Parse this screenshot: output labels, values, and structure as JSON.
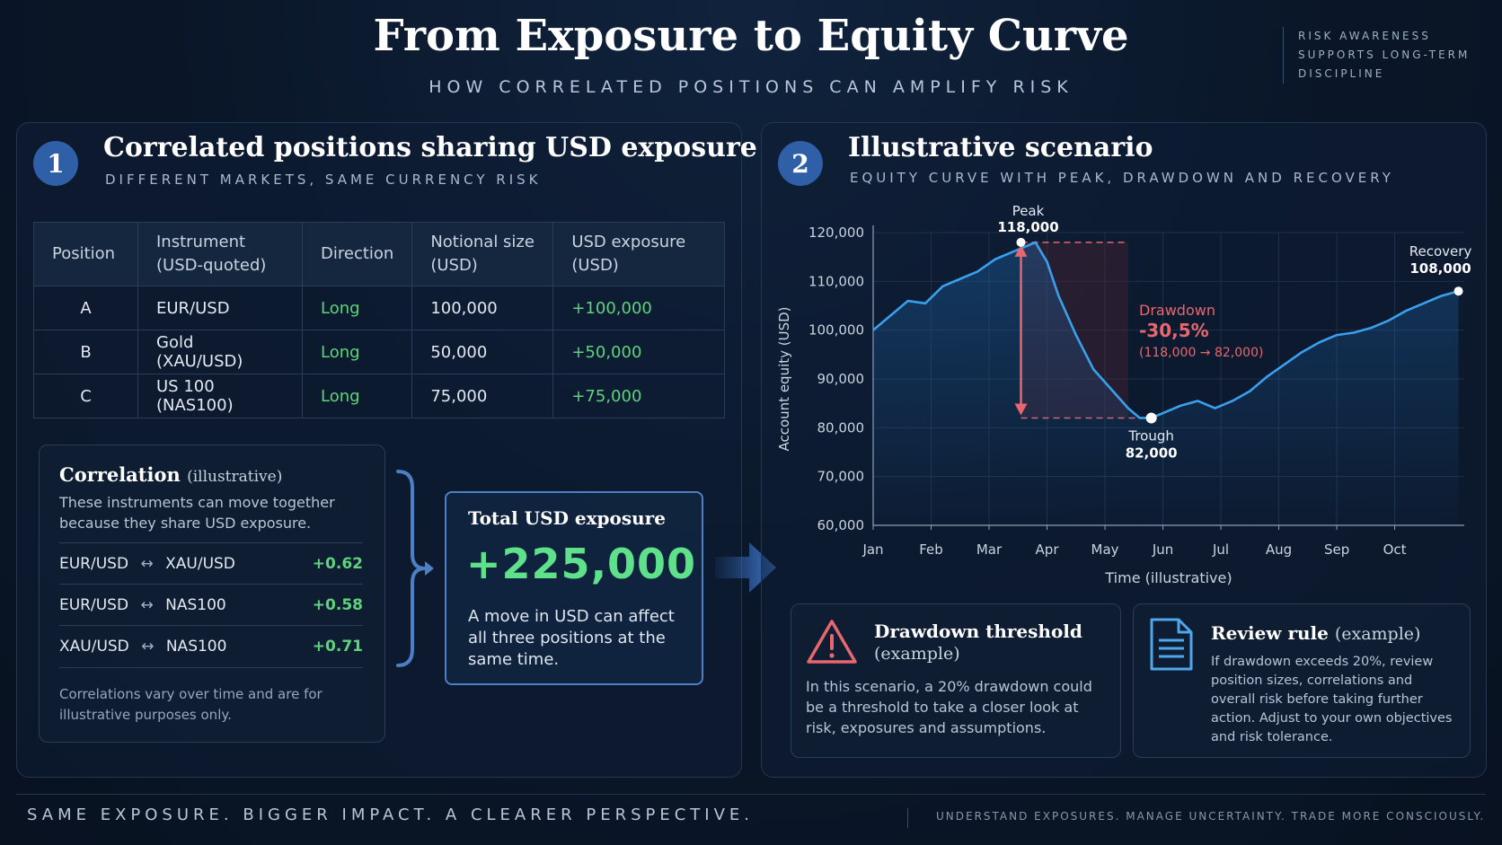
{
  "header": {
    "title": "From Exposure to Equity Curve",
    "subtitle": "HOW CORRELATED POSITIONS CAN AMPLIFY RISK",
    "side_note": "RISK AWARENESS SUPPORTS LONG-TERM DISCIPLINE"
  },
  "panel1": {
    "badge": "1",
    "title": "Correlated positions sharing USD exposure",
    "subtitle": "DIFFERENT MARKETS, SAME CURRENCY RISK",
    "table": {
      "headers": [
        "Position",
        "Instrument\n(USD-quoted)",
        "Direction",
        "Notional size\n(USD)",
        "USD exposure\n(USD)"
      ],
      "rows": [
        [
          "A",
          "EUR/USD",
          "Long",
          "100,000",
          "+100,000"
        ],
        [
          "B",
          "Gold (XAU/USD)",
          "Long",
          "50,000",
          "+50,000"
        ],
        [
          "C",
          "US 100 (NAS100)",
          "Long",
          "75,000",
          "+75,000"
        ]
      ]
    },
    "correlation": {
      "title": "Correlation",
      "qualifier": "(illustrative)",
      "description": "These instruments can move together because they share USD exposure.",
      "pairs": [
        {
          "a": "EUR/USD",
          "b": "XAU/USD",
          "value": "+0.62"
        },
        {
          "a": "EUR/USD",
          "b": "NAS100",
          "value": "+0.58"
        },
        {
          "a": "XAU/USD",
          "b": "NAS100",
          "value": "+0.71"
        }
      ],
      "note": "Correlations vary over time and are for illustrative purposes only."
    },
    "total": {
      "title": "Total USD exposure",
      "value": "+225,000",
      "description": "A move in USD can affect all three positions at the same time."
    }
  },
  "panel2": {
    "badge": "2",
    "title": "Illustrative scenario",
    "subtitle": "EQUITY CURVE WITH PEAK, DRAWDOWN AND RECOVERY",
    "threshold": {
      "title": "Drawdown threshold",
      "qualifier": "(example)",
      "description": "In this scenario, a 20% drawdown could be a threshold to take a closer look at risk, exposures and assumptions."
    },
    "review": {
      "title": "Review rule",
      "qualifier": "(example)",
      "description": "If drawdown exceeds 20%, review position sizes, correlations and overall risk before taking further action. Adjust to your own objectives and risk tolerance."
    }
  },
  "chart_data": {
    "type": "line",
    "xlabel": "Time (illustrative)",
    "ylabel": "Account equity (USD)",
    "x_ticks": [
      "Jan",
      "Feb",
      "Mar",
      "Apr",
      "May",
      "Jun",
      "Jul",
      "Aug",
      "Sep",
      "Oct"
    ],
    "y_ticks": [
      "60,000",
      "70,000",
      "80,000",
      "90,000",
      "100,000",
      "110,000",
      "120,000"
    ],
    "ylim": [
      60000,
      120000
    ],
    "xlim": [
      0,
      10.2
    ],
    "grid": true,
    "line_color": "#3aa0ee",
    "drawdown_color": "#e8676f",
    "series": [
      {
        "values_x": [
          0,
          0.3,
          0.6,
          0.9,
          1.2,
          1.5,
          1.8,
          2.1,
          2.4,
          2.6,
          2.8,
          3.0,
          3.2,
          3.5,
          3.8,
          4.1,
          4.4,
          4.6,
          4.8,
          5.0,
          5.3,
          5.6,
          5.9,
          6.2,
          6.5,
          6.8,
          7.1,
          7.4,
          7.7,
          8.0,
          8.3,
          8.6,
          8.9,
          9.2,
          9.5,
          9.8,
          10.1
        ],
        "values_y": [
          100000,
          103000,
          106000,
          105500,
          109000,
          110500,
          112000,
          114500,
          116000,
          117000,
          118000,
          114000,
          107000,
          99000,
          92000,
          88000,
          84000,
          82000,
          82000,
          83000,
          84500,
          85500,
          84000,
          85500,
          87500,
          90500,
          93000,
          95500,
          97500,
          99000,
          99500,
          100500,
          102000,
          104000,
          105500,
          107000,
          108000
        ]
      }
    ],
    "annotations": {
      "peak": {
        "label": "Peak",
        "value": "118,000",
        "x": 2.55,
        "y": 118000
      },
      "trough": {
        "label": "Trough",
        "value": "82,000",
        "x": 4.8,
        "y": 82000
      },
      "recovery": {
        "label": "Recovery",
        "value": "108,000",
        "x": 10.1,
        "y": 108000
      },
      "drawdown": {
        "label": "Drawdown",
        "percent": "-30,5%",
        "detail": "(118,000 → 82,000)"
      }
    }
  },
  "footer": {
    "left": "SAME EXPOSURE. BIGGER IMPACT. A CLEARER PERSPECTIVE.",
    "right": "UNDERSTAND EXPOSURES. MANAGE UNCERTAINTY. TRADE MORE CONSCIOUSLY."
  }
}
